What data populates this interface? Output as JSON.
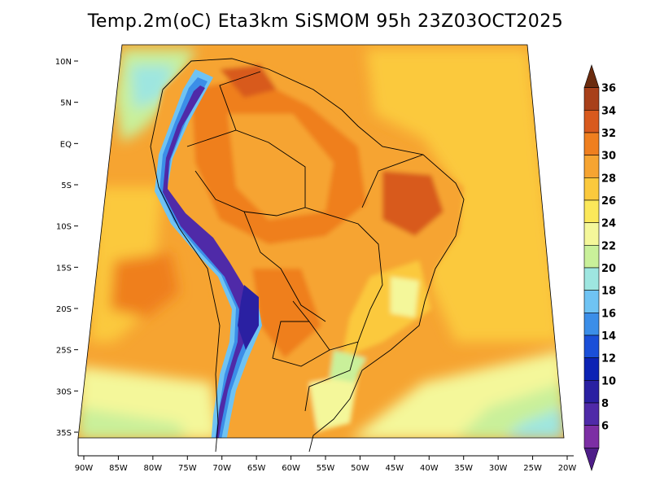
{
  "title": "Temp.2m(oC) Eta3km SiSMOM 95h 23Z03OCT2025",
  "map": {
    "projection_extent": {
      "lon_min": -90,
      "lon_max": -20,
      "lat_min": -38,
      "lat_max": 12
    },
    "x_ticks": [
      "90W",
      "85W",
      "80W",
      "75W",
      "70W",
      "65W",
      "60W",
      "55W",
      "50W",
      "45W",
      "40W",
      "35W",
      "30W",
      "25W",
      "20W"
    ],
    "x_tick_lons": [
      -90,
      -85,
      -80,
      -75,
      -70,
      -65,
      -60,
      -55,
      -50,
      -45,
      -40,
      -35,
      -30,
      -25,
      -20
    ],
    "y_ticks": [
      "10N",
      "5N",
      "EQ",
      "5S",
      "10S",
      "15S",
      "20S",
      "25S",
      "30S",
      "35S"
    ],
    "y_tick_lats": [
      10,
      5,
      0,
      -5,
      -10,
      -15,
      -20,
      -25,
      -30,
      -35
    ]
  },
  "colorbar": {
    "levels": [
      "36",
      "34",
      "32",
      "30",
      "28",
      "26",
      "24",
      "22",
      "20",
      "18",
      "16",
      "14",
      "12",
      "10",
      "8",
      "6"
    ],
    "colors": [
      "#6b2b0e",
      "#a8401a",
      "#d85a1e",
      "#ef7f1f",
      "#f6a431",
      "#fbc93d",
      "#fbe85a",
      "#f4f79a",
      "#c9f09a",
      "#9ee6e0",
      "#6fc3f3",
      "#3b8ee8",
      "#1a4fd8",
      "#0c22b4",
      "#2a20a2",
      "#4f2aa8",
      "#7c2ea4",
      "#4e1d88"
    ]
  }
}
